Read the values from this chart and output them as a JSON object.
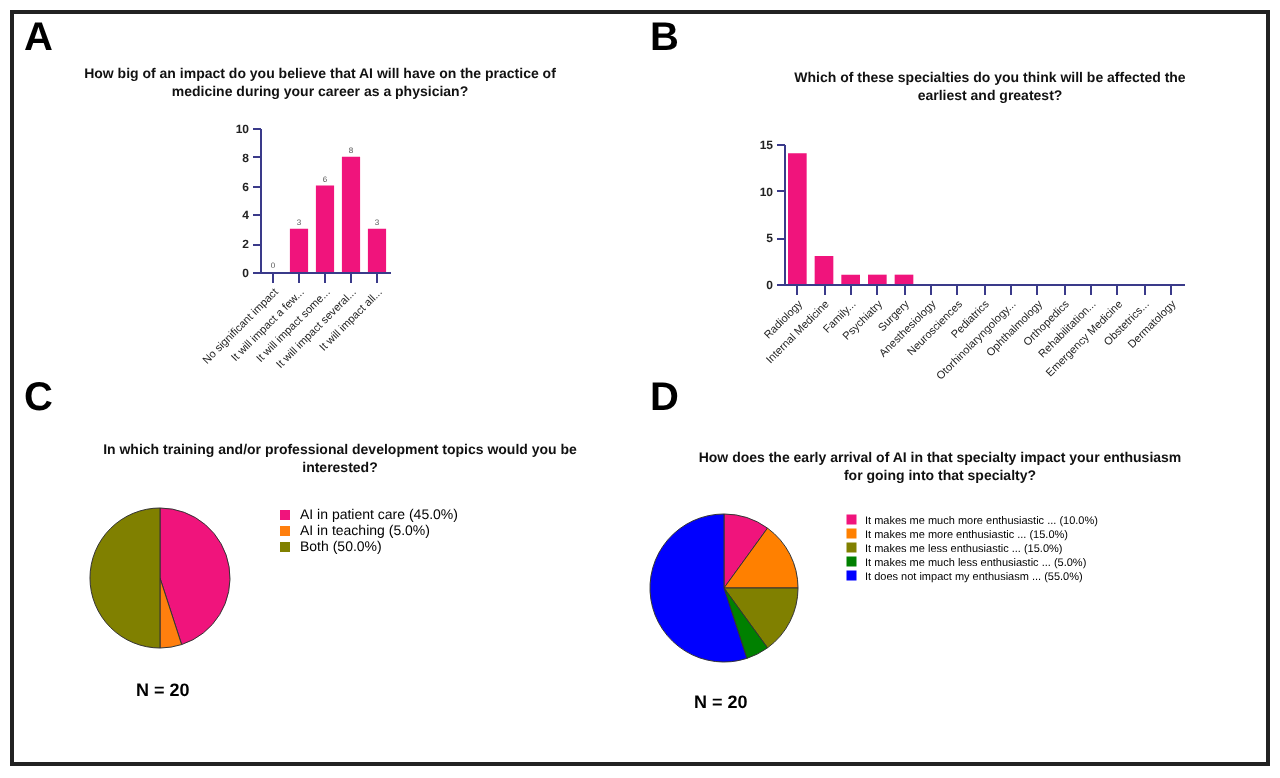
{
  "chart_data": [
    {
      "type": "bar",
      "title": "How big of an impact do you believe that AI will have on the practice of medicine during your career as a physician?",
      "categories": [
        "No significant impact",
        "It will impact a few...",
        "It will impact some...",
        "It will impact several...",
        "It will impact all..."
      ],
      "values": [
        0,
        3,
        6,
        8,
        3
      ],
      "color": "#f0147c",
      "ylim": [
        0,
        10
      ],
      "yticks": [
        0,
        2,
        4,
        6,
        8,
        10
      ],
      "grid": false,
      "data_labels": true,
      "annotations": [
        "A"
      ]
    },
    {
      "type": "bar",
      "title": "Which of these specialties do you think will be affected the earliest and greatest?",
      "categories": [
        "Radiology",
        "Internal Medicine",
        "Family...",
        "Psychiatry",
        "Surgery",
        "Anesthesiology",
        "Neurosciences",
        "Pediatrics",
        "Otorhinolaryngology...",
        "Ophthalmology",
        "Orthopedics",
        "Rehabilitation...",
        "Emergency Medicine",
        "Obstetrics...",
        "Dermatology"
      ],
      "values": [
        14,
        3,
        1,
        1,
        1,
        0,
        0,
        0,
        0,
        0,
        0,
        0,
        0,
        0,
        0
      ],
      "color": "#f0147c",
      "ylim": [
        0,
        15
      ],
      "yticks": [
        0,
        5,
        10,
        15
      ],
      "grid": false,
      "annotations": [
        "B"
      ]
    },
    {
      "type": "pie",
      "title": "In which training and/or professional development topics would you be interested?",
      "categories": [
        "AI in patient care (45.0%)",
        "AI in teaching (5.0%)",
        "Both (50.0%)"
      ],
      "values": [
        45,
        5,
        50
      ],
      "colors": [
        "#f0147c",
        "#ff7f0e",
        "#808000"
      ],
      "legend": "right",
      "annotations": [
        "C",
        "N = 20"
      ]
    },
    {
      "type": "pie",
      "title": "How does the early arrival of AI in that specialty impact your enthusiasm for going into that specialty?",
      "categories": [
        "It makes me much more enthusiastic ... (10.0%)",
        "It makes me more enthusiastic ... (15.0%)",
        "It makes me less enthusiastic ... (15.0%)",
        "It makes me much less enthusiastic ... (5.0%)",
        "It does not impact my enthusiasm ... (55.0%)"
      ],
      "values": [
        10,
        15,
        15,
        5,
        55
      ],
      "colors": [
        "#f0147c",
        "#ff8000",
        "#808000",
        "#008000",
        "#0000ff"
      ],
      "legend": "right",
      "annotations": [
        "D",
        "N = 20"
      ]
    }
  ]
}
